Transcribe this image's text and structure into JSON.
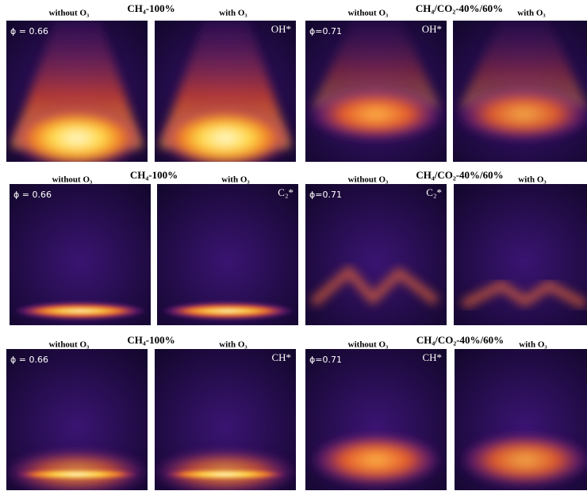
{
  "rows": [
    {
      "groups": [
        {
          "title": "CH₄-100%",
          "phi": "ϕ = 0.66",
          "species": "OH*",
          "panels": [
            {
              "label": "without O₃"
            },
            {
              "label": "with O₃"
            }
          ]
        },
        {
          "title": "CH₄/CO₂-40%/60%",
          "phi": "ϕ=0.71",
          "species": "OH*",
          "panels": [
            {
              "label": "without O₃"
            },
            {
              "label": "with O₃"
            }
          ]
        }
      ]
    },
    {
      "groups": [
        {
          "title": "CH₄-100%",
          "phi": "ϕ = 0.66",
          "species": "C₂*",
          "panels": [
            {
              "label": "without O₃"
            },
            {
              "label": "with O₃"
            }
          ]
        },
        {
          "title": "CH₄/CO₂-40%/60%",
          "phi": "ϕ=0.71",
          "species": "C₂*",
          "panels": [
            {
              "label": "without O₃"
            },
            {
              "label": "with O₃"
            }
          ]
        }
      ]
    },
    {
      "groups": [
        {
          "title": "CH₄-100%",
          "phi": "ϕ = 0.66",
          "species": "CH*",
          "panels": [
            {
              "label": "without O₃"
            },
            {
              "label": "with O₃"
            }
          ]
        },
        {
          "title": "CH₄/CO₂-40%/60%",
          "phi": "ϕ=0.71",
          "species": "CH*",
          "panels": [
            {
              "label": "without O₃"
            },
            {
              "label": "with O₃"
            }
          ]
        }
      ]
    }
  ]
}
